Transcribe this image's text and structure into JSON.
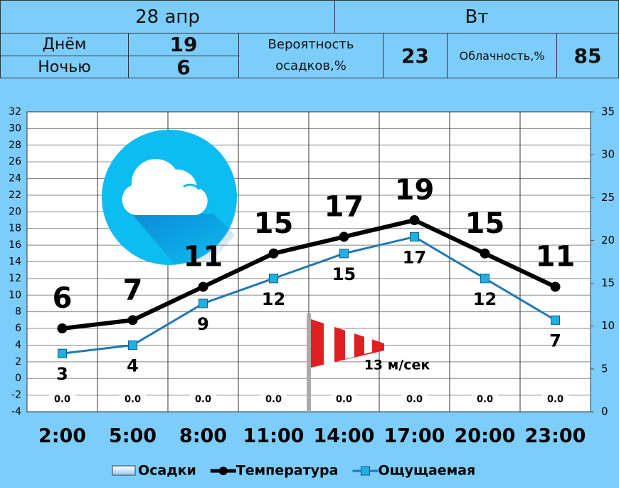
{
  "header": {
    "date": "28 апр",
    "weekday": "Вт",
    "day_label": "Днём",
    "day_temp": "19",
    "night_label": "Ночью",
    "night_temp": "6",
    "precip_label": "Вероятность осадков,%",
    "precip_prob": "23",
    "cloud_label": "Облачность,%",
    "cloud": "85"
  },
  "chart_data": {
    "type": "line",
    "categories": [
      "2:00",
      "5:00",
      "8:00",
      "11:00",
      "14:00",
      "17:00",
      "20:00",
      "23:00"
    ],
    "series": [
      {
        "name": "Осадки",
        "type": "bar",
        "axis": "y2",
        "color": "#cfe6fb",
        "values": [
          0,
          0,
          0,
          0,
          0,
          0,
          0,
          0
        ],
        "value_labels": [
          "0.0",
          "0.0",
          "0.0",
          "0.0",
          "0.0",
          "0.0",
          "0.0",
          "0.0"
        ]
      },
      {
        "name": "Температура",
        "color": "#000000",
        "values": [
          6,
          7,
          11,
          15,
          17,
          19,
          15,
          11
        ]
      },
      {
        "name": "Ощущаемая",
        "color": "#1f78b4",
        "values": [
          3,
          4,
          9,
          12,
          15,
          17,
          12,
          7
        ]
      }
    ],
    "ylim": [
      -4,
      32
    ],
    "yticks": [
      -4,
      -2,
      0,
      2,
      4,
      6,
      8,
      10,
      12,
      14,
      16,
      18,
      20,
      22,
      24,
      26,
      28,
      30,
      32
    ],
    "y2lim": [
      0,
      35
    ],
    "y2ticks": [
      0,
      5,
      10,
      15,
      20,
      25,
      30,
      35
    ],
    "annotation": "13 м/сек",
    "grid": true
  }
}
